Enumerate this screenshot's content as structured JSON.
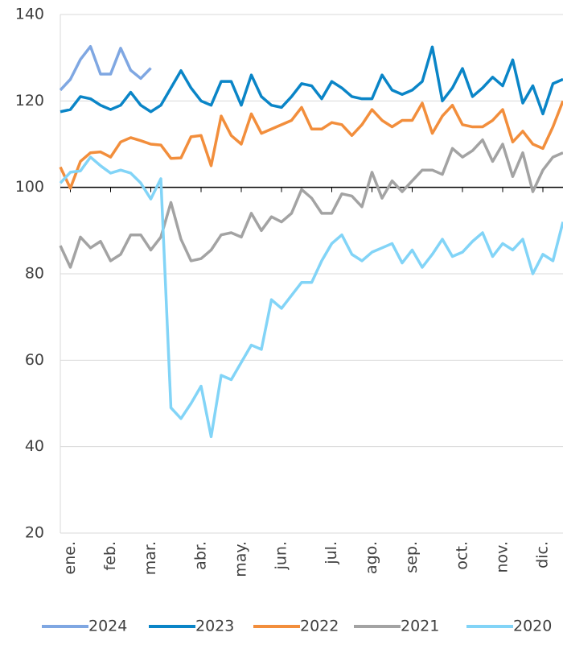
{
  "chart_data": {
    "type": "line",
    "categories": [
      null,
      "ene.",
      null,
      null,
      null,
      "feb.",
      null,
      null,
      null,
      "mar.",
      null,
      null,
      null,
      null,
      "abr.",
      null,
      null,
      null,
      "may.",
      null,
      null,
      null,
      "jun.",
      null,
      null,
      null,
      null,
      "jul.",
      null,
      null,
      null,
      "ago.",
      null,
      null,
      null,
      "sep.",
      null,
      null,
      null,
      null,
      "oct.",
      null,
      null,
      null,
      "nov.",
      null,
      null,
      null,
      "dic.",
      null,
      null
    ],
    "series": [
      {
        "name": "2024",
        "color": "#7fa7e2",
        "values": [
          122.5,
          125,
          129.6,
          132.6,
          126.2,
          126.2,
          132.2,
          127.1,
          125.2,
          127.6,
          null,
          null,
          null,
          null,
          null,
          null,
          null,
          null,
          null,
          null,
          null,
          null,
          null,
          null,
          null,
          null,
          null,
          null,
          null,
          null,
          null,
          null,
          null,
          null,
          null,
          null,
          null,
          null,
          null,
          null,
          null,
          null,
          null,
          null,
          null,
          null,
          null,
          null,
          null,
          null,
          null
        ]
      },
      {
        "name": "2023",
        "color": "#0a85c7",
        "values": [
          117.5,
          118,
          121,
          120.5,
          119,
          118,
          119,
          122,
          119,
          117.5,
          119,
          123,
          127,
          123,
          120,
          119,
          124.5,
          124.5,
          119,
          126,
          121,
          119,
          118.5,
          121,
          124,
          123.5,
          120.5,
          124.5,
          123,
          121,
          120.5,
          120.5,
          126,
          122.5,
          121.5,
          122.5,
          124.5,
          132.5,
          120,
          123,
          127.5,
          121,
          123,
          125.5,
          123.5,
          129.5,
          119.5,
          123.5,
          117,
          124,
          125
        ]
      },
      {
        "name": "2022",
        "color": "#f28e3c",
        "values": [
          104.7,
          99.8,
          106,
          108,
          108.2,
          107,
          110.5,
          111.5,
          110.8,
          110,
          109.8,
          106.7,
          106.8,
          111.7,
          112,
          105,
          116.5,
          112,
          110,
          117,
          112.5,
          113.5,
          114.5,
          115.5,
          118.5,
          113.5,
          113.5,
          115,
          114.5,
          112,
          114.5,
          118,
          115.5,
          114,
          115.5,
          115.5,
          119.5,
          112.5,
          116.5,
          119,
          114.5,
          114,
          114,
          115.5,
          118,
          110.5,
          113,
          110,
          109,
          114,
          120
        ]
      },
      {
        "name": "2021",
        "color": "#a3a3a3",
        "values": [
          86.5,
          81.5,
          88.5,
          86,
          87.5,
          83,
          84.5,
          89,
          89,
          85.5,
          88.5,
          96.5,
          88,
          83,
          83.5,
          85.5,
          89,
          89.5,
          88.5,
          94,
          90,
          93.2,
          92,
          94,
          99.5,
          97.5,
          94,
          94,
          98.5,
          98,
          95.5,
          103.5,
          97.5,
          101.5,
          99,
          101.5,
          104,
          104,
          103,
          109,
          107,
          108.5,
          111,
          106,
          110,
          102.5,
          108,
          99,
          104,
          107,
          108
        ]
      },
      {
        "name": "2020",
        "color": "#82d4f7",
        "values": [
          101,
          103.5,
          103.8,
          107,
          105,
          103.3,
          104,
          103.3,
          101,
          97.3,
          102,
          49,
          46.5,
          50,
          54,
          42.3,
          56.5,
          55.5,
          59.5,
          63.5,
          62.5,
          74,
          72,
          75,
          78,
          78,
          83,
          87,
          89,
          84.5,
          83,
          85,
          86,
          87,
          82.5,
          85.5,
          81.5,
          84.5,
          88,
          84,
          85,
          87.5,
          89.5,
          84,
          87,
          85.5,
          88,
          80,
          84.5,
          83,
          92
        ]
      }
    ],
    "ylim": [
      20,
      140
    ],
    "yticks": [
      20,
      40,
      60,
      80,
      100,
      120,
      140
    ],
    "grid": true,
    "xaxis_at": 100,
    "legend": "bottom"
  }
}
